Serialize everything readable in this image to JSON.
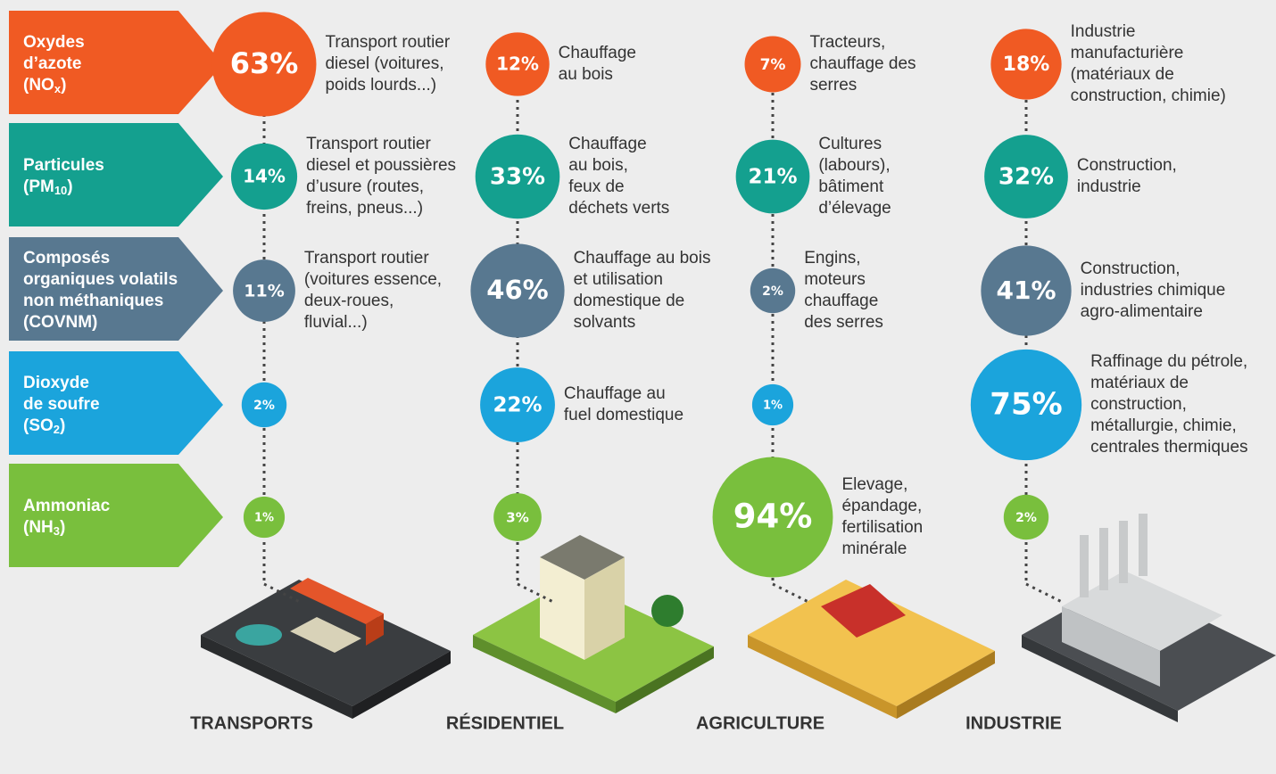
{
  "pollutants": [
    {
      "lines": [
        "Oxydes",
        "d’azote"
      ],
      "formula": [
        "(NO",
        "x",
        ")"
      ]
    },
    {
      "lines": [
        "Particules"
      ],
      "formula": [
        "(PM",
        "10",
        ")"
      ]
    },
    {
      "lines": [
        "Composés",
        "organiques volatils",
        "non méthaniques",
        "(COVNM)"
      ]
    },
    {
      "lines": [
        "Dioxyde",
        "de soufre"
      ],
      "formula": [
        "(SO",
        "2",
        ")"
      ]
    },
    {
      "lines": [
        "Ammoniac"
      ],
      "formula": [
        "(NH",
        "3",
        ")"
      ]
    }
  ],
  "sectors": [
    {
      "name": "TRANSPORTS",
      "values": [
        63,
        14,
        11,
        2,
        1
      ],
      "value_labels": [
        "63%",
        "14%",
        "11%",
        "2%",
        "1%"
      ],
      "descriptions": [
        [
          "Transport routier",
          "diesel (voitures,",
          "poids lourds...)"
        ],
        [
          "Transport routier",
          "diesel et poussières",
          "d’usure (routes,",
          "freins, pneus...)"
        ],
        [
          "Transport routier",
          "(voitures essence,",
          "deux-roues,",
          "fluvial...)"
        ],
        [],
        []
      ]
    },
    {
      "name": "RÉSIDENTIEL",
      "values": [
        12,
        33,
        46,
        22,
        3
      ],
      "value_labels": [
        "12%",
        "33%",
        "46%",
        "22%",
        "3%"
      ],
      "descriptions": [
        [
          "Chauffage",
          "au bois"
        ],
        [
          "Chauffage",
          "au bois,",
          "feux de",
          "déchets verts"
        ],
        [
          "Chauffage au bois",
          "et utilisation",
          "domestique de",
          "solvants"
        ],
        [
          "Chauffage au",
          "fuel domestique"
        ],
        []
      ]
    },
    {
      "name": "AGRICULTURE",
      "values": [
        7,
        21,
        2,
        1,
        94
      ],
      "value_labels": [
        "7%",
        "21%",
        "2%",
        "1%",
        "94%"
      ],
      "descriptions": [
        [
          "Tracteurs,",
          "chauffage des",
          "serres"
        ],
        [
          "Cultures",
          "(labours),",
          "bâtiment",
          "d’élevage"
        ],
        [
          "Engins,",
          "moteurs",
          "chauffage",
          "des serres"
        ],
        [],
        [
          "Elevage,",
          "épandage,",
          "fertilisation",
          "minérale"
        ]
      ]
    },
    {
      "name": "INDUSTRIE",
      "values": [
        18,
        32,
        41,
        75,
        2
      ],
      "value_labels": [
        "18%",
        "32%",
        "41%",
        "75%",
        "2%"
      ],
      "descriptions": [
        [
          "Industrie",
          "manufacturière",
          "(matériaux de",
          "construction, chimie)"
        ],
        [
          "Construction,",
          "industrie"
        ],
        [
          "Construction,",
          "industries chimique",
          "agro-alimentaire"
        ],
        [
          "Raffinage du pétrole,",
          "matériaux de",
          "construction,",
          "métallurgie, chimie,",
          "centrales thermiques"
        ],
        []
      ]
    }
  ]
}
